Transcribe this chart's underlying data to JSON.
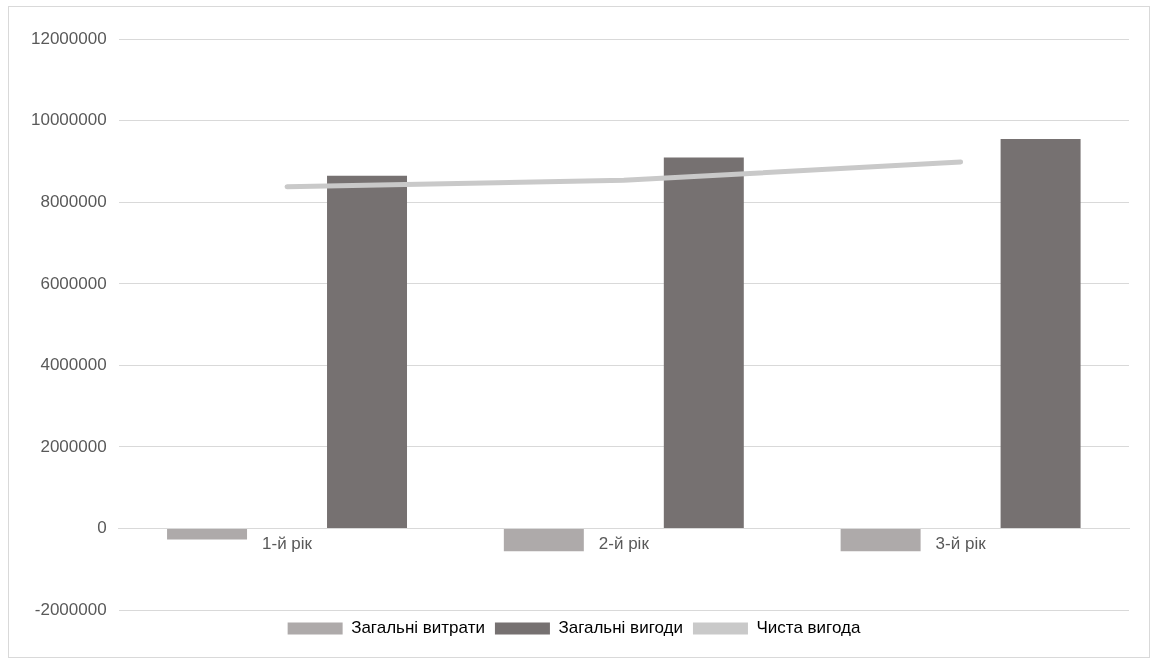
{
  "chart_data": {
    "type": "bar",
    "categories": [
      "1-й рік",
      "2-й рік",
      "3-й рік"
    ],
    "series": [
      {
        "name": "Загальні витрати",
        "color": "#aeaaaa",
        "values": [
          -270000,
          -560000,
          -560000
        ]
      },
      {
        "name": "Загальні вигоди",
        "color": "#767171",
        "values": [
          8650000,
          9100000,
          9550000
        ]
      },
      {
        "name": "Чиста вигода",
        "type": "line",
        "color": "#c9c9c9",
        "values": [
          8380000,
          8540000,
          8990000
        ]
      }
    ],
    "ylim": [
      -2000000,
      12000000
    ],
    "yticks": [
      -2000000,
      0,
      2000000,
      4000000,
      6000000,
      8000000,
      10000000,
      12000000
    ],
    "grid": "y",
    "legend": "bottom",
    "marker": "none"
  }
}
